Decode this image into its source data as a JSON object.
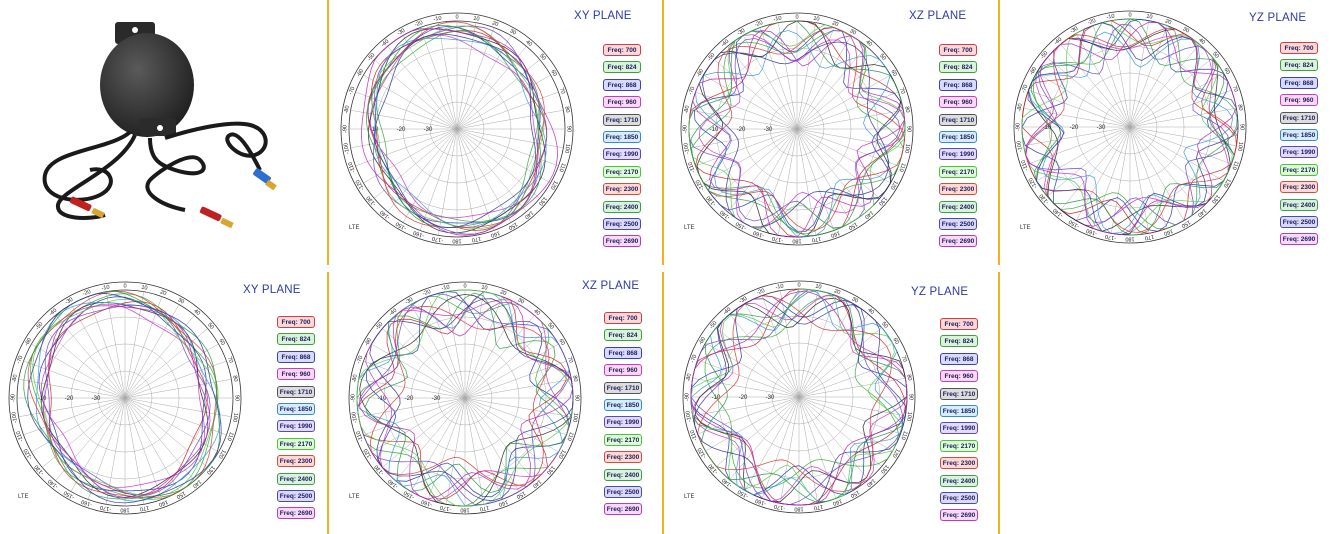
{
  "legend_labels": [
    "Freq: 700",
    "Freq: 824",
    "Freq: 868",
    "Freq: 960",
    "Freq: 1710",
    "Freq: 1850",
    "Freq: 1990",
    "Freq: 2170",
    "Freq: 2300",
    "Freq: 2400",
    "Freq: 2500",
    "Freq: 2690"
  ],
  "legend_colors": [
    "#ffd9d9",
    "#d9f4d9",
    "#d9dcff",
    "#ffd9f4",
    "#dddddd",
    "#d6ecff",
    "#e2ddff",
    "#dcffd6",
    "#ffdad4",
    "#d9f2dc",
    "#dadaf8",
    "#f8daf8"
  ],
  "legend_borders": [
    "#d04040",
    "#40a040",
    "#3a40c0",
    "#c040c0",
    "#555555",
    "#3a8ad0",
    "#5a4ac0",
    "#50c040",
    "#d05040",
    "#40a050",
    "#4a4ab0",
    "#b040c0"
  ],
  "series_colors": [
    "#cc2222",
    "#33aa33",
    "#2233bb",
    "#cc33cc",
    "#222222",
    "#3399dd",
    "#6644cc",
    "#55cc44",
    "#dd3333",
    "#229944",
    "#333399",
    "#bb22bb"
  ],
  "radial_ticks": [
    "-10",
    "-20",
    "-30"
  ],
  "corner_label": "LTE",
  "chart_data": [
    {
      "type": "polar",
      "title": "XY PLANE",
      "angle_labels": [
        "0",
        "10",
        "20",
        "30",
        "40",
        "50",
        "60",
        "70",
        "80",
        "90",
        "100",
        "110",
        "120",
        "130",
        "140",
        "150",
        "160",
        "170",
        "180",
        "-170",
        "-160",
        "-150",
        "-140",
        "-130",
        "-120",
        "-110",
        "-100",
        "-90",
        "-80",
        "-70",
        "-60",
        "-50",
        "-40",
        "-30",
        "-20",
        "-10"
      ],
      "rlim": [
        -40,
        0
      ],
      "series_names": [
        "Freq: 700",
        "Freq: 824",
        "Freq: 868",
        "Freq: 960",
        "Freq: 1710",
        "Freq: 1850",
        "Freq: 1990",
        "Freq: 2170",
        "Freq: 2300",
        "Freq: 2400",
        "Freq: 2500",
        "Freq: 2690"
      ]
    },
    {
      "type": "polar",
      "title": "XZ PLANE",
      "angle_labels": [
        "0",
        "10",
        "20",
        "30",
        "40",
        "50",
        "60",
        "70",
        "80",
        "90",
        "100",
        "110",
        "120",
        "130",
        "140",
        "150",
        "160",
        "170",
        "180",
        "-170",
        "-160",
        "-150",
        "-140",
        "-130",
        "-120",
        "-110",
        "-100",
        "-90",
        "-80",
        "-70",
        "-60",
        "-50",
        "-40",
        "-30",
        "-20",
        "-10"
      ],
      "rlim": [
        -40,
        0
      ],
      "series_names": [
        "Freq: 700",
        "Freq: 824",
        "Freq: 868",
        "Freq: 960",
        "Freq: 1710",
        "Freq: 1850",
        "Freq: 1990",
        "Freq: 2170",
        "Freq: 2300",
        "Freq: 2400",
        "Freq: 2500",
        "Freq: 2690"
      ]
    },
    {
      "type": "polar",
      "title": "YZ PLANE",
      "angle_labels": [
        "0",
        "10",
        "20",
        "30",
        "40",
        "50",
        "60",
        "70",
        "80",
        "90",
        "100",
        "110",
        "120",
        "130",
        "140",
        "150",
        "160",
        "170",
        "180",
        "-170",
        "-160",
        "-150",
        "-140",
        "-130",
        "-120",
        "-110",
        "-100",
        "-90",
        "-80",
        "-70",
        "-60",
        "-50",
        "-40",
        "-30",
        "-20",
        "-10"
      ],
      "rlim": [
        -40,
        0
      ],
      "series_names": [
        "Freq: 700",
        "Freq: 824",
        "Freq: 868",
        "Freq: 960",
        "Freq: 1710",
        "Freq: 1850",
        "Freq: 1990",
        "Freq: 2170",
        "Freq: 2300",
        "Freq: 2400",
        "Freq: 2500",
        "Freq: 2690"
      ]
    },
    {
      "type": "polar",
      "title": "XY PLANE",
      "angle_labels": [
        "0",
        "10",
        "20",
        "30",
        "40",
        "50",
        "60",
        "70",
        "80",
        "90",
        "100",
        "110",
        "120",
        "130",
        "140",
        "150",
        "160",
        "170",
        "180",
        "-170",
        "-160",
        "-150",
        "-140",
        "-130",
        "-120",
        "-110",
        "-100",
        "-90",
        "-80",
        "-70",
        "-60",
        "-50",
        "-40",
        "-30",
        "-20",
        "-10"
      ],
      "rlim": [
        -40,
        0
      ],
      "series_names": [
        "Freq: 700",
        "Freq: 824",
        "Freq: 868",
        "Freq: 960",
        "Freq: 1710",
        "Freq: 1850",
        "Freq: 1990",
        "Freq: 2170",
        "Freq: 2300",
        "Freq: 2400",
        "Freq: 2500",
        "Freq: 2690"
      ]
    },
    {
      "type": "polar",
      "title": "XZ PLANE",
      "angle_labels": [
        "0",
        "10",
        "20",
        "30",
        "40",
        "50",
        "60",
        "70",
        "80",
        "90",
        "100",
        "110",
        "120",
        "130",
        "140",
        "150",
        "160",
        "170",
        "180",
        "-170",
        "-160",
        "-150",
        "-140",
        "-130",
        "-120",
        "-110",
        "-100",
        "-90",
        "-80",
        "-70",
        "-60",
        "-50",
        "-40",
        "-30",
        "-20",
        "-10"
      ],
      "rlim": [
        -40,
        0
      ],
      "series_names": [
        "Freq: 700",
        "Freq: 824",
        "Freq: 868",
        "Freq: 960",
        "Freq: 1710",
        "Freq: 1850",
        "Freq: 1990",
        "Freq: 2170",
        "Freq: 2300",
        "Freq: 2400",
        "Freq: 2500",
        "Freq: 2690"
      ]
    },
    {
      "type": "polar",
      "title": "YZ PLANE",
      "angle_labels": [
        "0",
        "10",
        "20",
        "30",
        "40",
        "50",
        "60",
        "70",
        "80",
        "90",
        "100",
        "110",
        "120",
        "130",
        "140",
        "150",
        "160",
        "170",
        "180",
        "-170",
        "-160",
        "-150",
        "-140",
        "-130",
        "-120",
        "-110",
        "-100",
        "-90",
        "-80",
        "-70",
        "-60",
        "-50",
        "-40",
        "-30",
        "-20",
        "-10"
      ],
      "rlim": [
        -40,
        0
      ],
      "series_names": [
        "Freq: 700",
        "Freq: 824",
        "Freq: 868",
        "Freq: 960",
        "Freq: 1710",
        "Freq: 1850",
        "Freq: 1990",
        "Freq: 2170",
        "Freq: 2300",
        "Freq: 2400",
        "Freq: 2500",
        "Freq: 2690"
      ]
    }
  ]
}
